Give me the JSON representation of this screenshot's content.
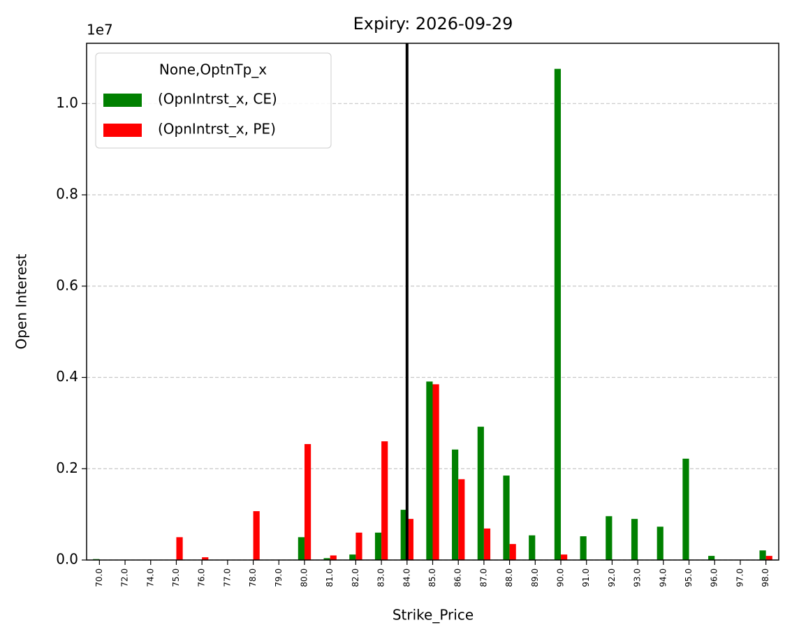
{
  "chart_data": {
    "type": "bar",
    "title": "Expiry: 2026-09-29",
    "x_label": "Strike_Price",
    "y_label": "Open Interest",
    "offset_label": "1e7",
    "legend_title": "None,OptnTp_x",
    "legend_loc": "upper left",
    "grid": true,
    "vline_at": "84.0",
    "categories": [
      "70.0",
      "72.0",
      "74.0",
      "75.0",
      "76.0",
      "77.0",
      "78.0",
      "79.0",
      "80.0",
      "81.0",
      "82.0",
      "83.0",
      "84.0",
      "85.0",
      "86.0",
      "87.0",
      "88.0",
      "89.0",
      "90.0",
      "91.0",
      "92.0",
      "93.0",
      "94.0",
      "95.0",
      "96.0",
      "97.0",
      "98.0"
    ],
    "series": [
      {
        "name": "(OpnIntrst_x, CE)",
        "color": "#008000",
        "values": [
          20000,
          0,
          0,
          0,
          0,
          0,
          0,
          0,
          500000,
          40000,
          120000,
          600000,
          1100000,
          3910000,
          2420000,
          2920000,
          1850000,
          540000,
          10760000,
          520000,
          960000,
          900000,
          730000,
          2220000,
          90000,
          0,
          210000
        ]
      },
      {
        "name": "(OpnIntrst_x, PE)",
        "color": "#ff0000",
        "values": [
          0,
          0,
          0,
          500000,
          60000,
          0,
          1070000,
          0,
          2540000,
          100000,
          600000,
          2600000,
          900000,
          3850000,
          1770000,
          690000,
          350000,
          0,
          120000,
          0,
          0,
          0,
          0,
          0,
          0,
          0,
          90000
        ]
      }
    ],
    "ylim": [
      0,
      11320000
    ],
    "yticks": [
      {
        "value": 0,
        "label": "0.0"
      },
      {
        "value": 2000000,
        "label": "0.2"
      },
      {
        "value": 4000000,
        "label": "0.4"
      },
      {
        "value": 6000000,
        "label": "0.6"
      },
      {
        "value": 8000000,
        "label": "0.8"
      },
      {
        "value": 10000000,
        "label": "1.0"
      }
    ]
  }
}
